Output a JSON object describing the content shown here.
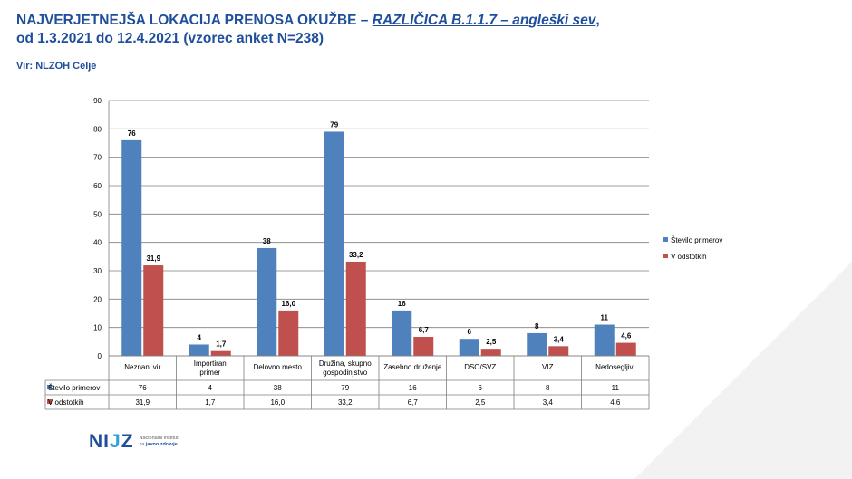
{
  "header": {
    "title_part1": "NAJVERJETNEJŠA LOKACIJA PRENOSA OKUŽBE – ",
    "title_variant": "RAZLIČICA B.1.1.7 – angleški sev",
    "title_comma": ",",
    "title_line2": "od 1.3.2021 do 12.4.2021 (vzorec anket N=238)",
    "source": "Vir: NLZOH Celje"
  },
  "logo": {
    "mark_left": "NI",
    "mark_mid": "J",
    "mark_right": "Z",
    "line1": "Nacionalni inštitut",
    "line2_a": "za ",
    "line2_b": "javno zdravje"
  },
  "colors": {
    "series1": "#4f81bd",
    "series2": "#c0504d",
    "title": "#1f4e9c"
  },
  "chart_data": {
    "type": "bar",
    "categories": [
      "Neznani vir",
      "Importiran primer",
      "Delovno mesto",
      "Družina, skupno gospodinjstvo",
      "Zasebno druženje",
      "DSO/SVZ",
      "VIZ",
      "Nedosegljivi"
    ],
    "category_lines": [
      [
        "Neznani vir"
      ],
      [
        "Importiran",
        "primer"
      ],
      [
        "Delovno mesto"
      ],
      [
        "Družina, skupno",
        "gospodinjstvo"
      ],
      [
        "Zasebno druženje"
      ],
      [
        "DSO/SVZ"
      ],
      [
        "VIZ"
      ],
      [
        "Nedosegljivi"
      ]
    ],
    "series": [
      {
        "name": "Število primerov",
        "values": [
          76,
          4,
          38,
          79,
          16,
          6,
          8,
          11
        ],
        "labels": [
          "76",
          "4",
          "38",
          "79",
          "16",
          "6",
          "8",
          "11"
        ]
      },
      {
        "name": "V odstotkih",
        "values": [
          31.9,
          1.7,
          16.0,
          33.2,
          6.7,
          2.5,
          3.4,
          4.6
        ],
        "labels": [
          "31,9",
          "1,7",
          "16,0",
          "33,2",
          "6,7",
          "2,5",
          "3,4",
          "4,6"
        ]
      }
    ],
    "ylim": [
      0,
      90
    ],
    "yticks": [
      0,
      10,
      20,
      30,
      40,
      50,
      60,
      70,
      80,
      90
    ],
    "grid": true,
    "legend_position": "right",
    "data_table": true
  }
}
